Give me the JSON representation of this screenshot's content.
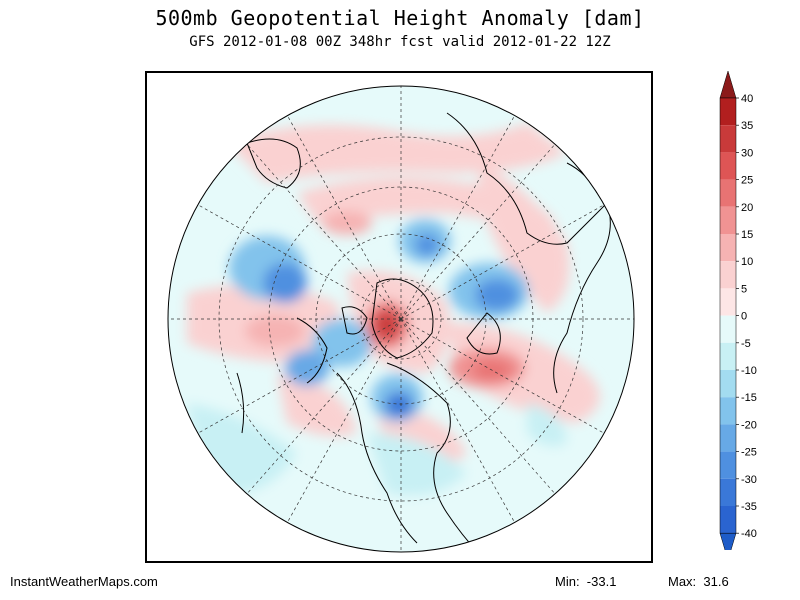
{
  "title": "500mb Geopotential Height Anomaly [dam]",
  "subtitle": "GFS 2012-01-08 00Z 348hr fcst valid 2012-01-22 12Z",
  "footer": {
    "site": "InstantWeatherMaps.com",
    "min_label": "Min:",
    "min_value": "-33.1",
    "max_label": "Max:",
    "max_value": "31.6"
  },
  "colorbar": {
    "ticks": [
      "40",
      "35",
      "30",
      "25",
      "20",
      "15",
      "10",
      "5",
      "0",
      "-5",
      "-10",
      "-15",
      "-20",
      "-25",
      "-30",
      "-35",
      "-40"
    ],
    "colors": [
      "#b21f1f",
      "#c93a3a",
      "#de5555",
      "#e87373",
      "#f09393",
      "#f6b3b3",
      "#fad1d1",
      "#fde6e6",
      "#e6fafa",
      "#c8f0f4",
      "#a3dcf0",
      "#82c3ec",
      "#67a9e6",
      "#4f90e0",
      "#3a78d8",
      "#2a64d0"
    ],
    "top_arrow_color": "#8b1a1a",
    "bottom_arrow_color": "#1e5cc8"
  },
  "map": {
    "projection": "north polar stereographic",
    "ocean_color": "#e6fafa",
    "positive_color": "#fad1d1",
    "negative_color": "#c8f0f4"
  }
}
